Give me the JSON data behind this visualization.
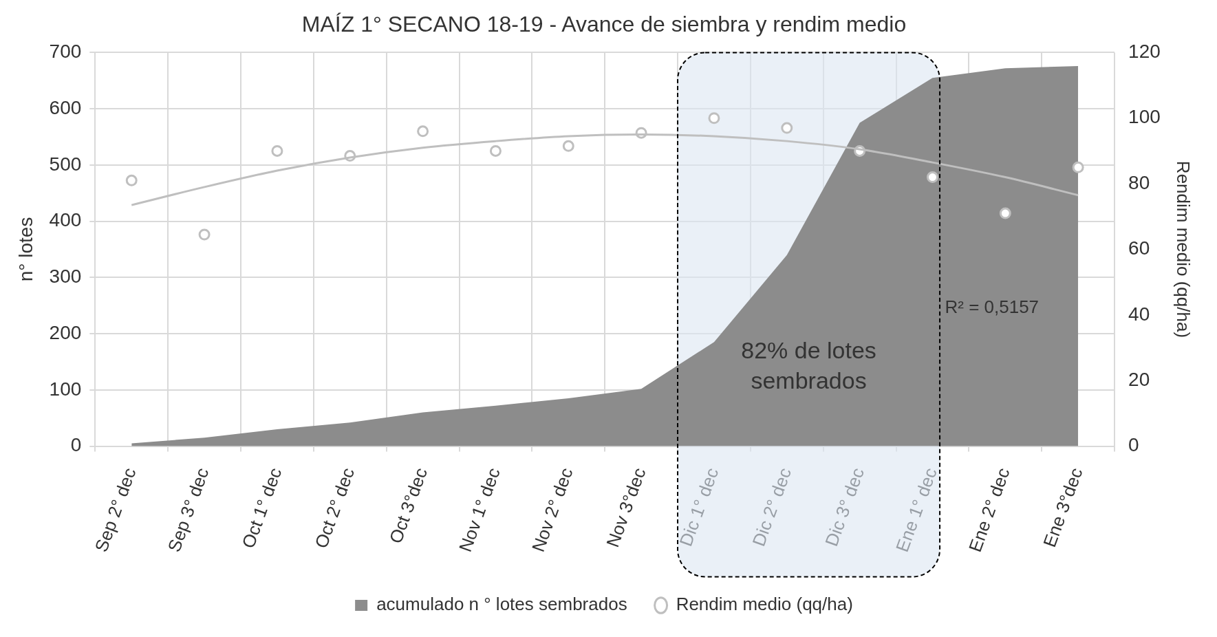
{
  "chart_data": {
    "type": "area",
    "title": "MAÍZ 1° SECANO 18-19 - Avance de siembra y rendim medio",
    "categories": [
      "Sep 2° dec",
      "Sep 3° dec",
      "Oct 1° dec",
      "Oct 2° dec",
      "Oct 3°dec",
      "Nov 1° dec",
      "Nov 2° dec",
      "Nov 3°dec",
      "Dic 1° dec",
      "Dic 2° dec",
      "Dic 3° dec",
      "Ene 1° dec",
      "Ene 2° dec",
      "Ene 3°dec"
    ],
    "series": [
      {
        "name": "acumulado n ° lotes sembrados",
        "color": "#8c8c8c",
        "values": [
          5,
          15,
          30,
          42,
          60,
          72,
          85,
          102,
          185,
          340,
          575,
          655,
          672,
          676
        ]
      },
      {
        "name": "Rendim medio (qq/ha)",
        "type": "scatter",
        "axis": "y2",
        "color": "#bfbfbf",
        "marker": "circle",
        "values": [
          81,
          64.5,
          90,
          88.5,
          96,
          90,
          91.5,
          95.5,
          100,
          97,
          90,
          82,
          71,
          85
        ]
      },
      {
        "type": "line",
        "axis": "y2",
        "color": "#bfbfbf",
        "line_style": "solid",
        "values": [
          73.5,
          79,
          84,
          88,
          91,
          93,
          94.5,
          95,
          94.5,
          93,
          90.5,
          86.5,
          82,
          76.5
        ]
      }
    ],
    "ylabel": "n° lotes",
    "y2label": "Rendim medio (qq/ha)",
    "ylim": [
      0,
      700
    ],
    "yticks": [
      0,
      100,
      200,
      300,
      400,
      500,
      600,
      700
    ],
    "y2lim": [
      0,
      120
    ],
    "y2ticks": [
      0,
      20,
      40,
      60,
      80,
      100,
      120
    ],
    "bands": [
      {
        "axis": "x",
        "from": "Dic 1° dec",
        "to": "Ene 1° dec",
        "label": "82% de lotes sembrados",
        "color": "#dce6f2"
      }
    ],
    "annotations": [
      "R² = 0,5157"
    ],
    "grid": true,
    "legend": "bottom"
  }
}
